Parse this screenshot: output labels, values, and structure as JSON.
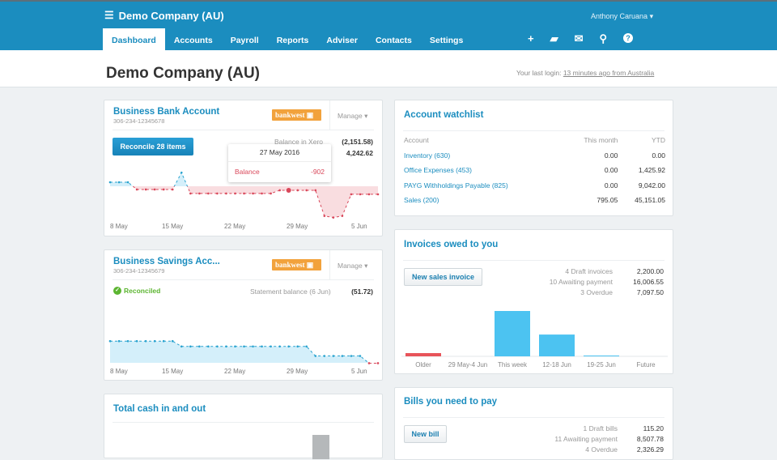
{
  "header": {
    "org_name": "Demo Company (AU)",
    "user": "Anthony Caruana",
    "nav": [
      "Dashboard",
      "Accounts",
      "Payroll",
      "Reports",
      "Adviser",
      "Contacts",
      "Settings"
    ],
    "active_tab": "Dashboard",
    "icons": [
      "plus-icon",
      "folder-icon",
      "mail-icon",
      "search-icon",
      "help-icon"
    ]
  },
  "page": {
    "title": "Demo Company (AU)",
    "login_prefix": "Your last login:",
    "login_link": "13 minutes ago from Australia"
  },
  "bank": {
    "title": "Business Bank Account",
    "number": "306-234-12345678",
    "bank_logo": "bankwest",
    "manage": "Manage",
    "reconcile": "Reconcile 28 items",
    "balance_label": "Balance in Xero",
    "balance_value": "(2,151.58)",
    "statement_value": "4,242.62",
    "tooltip": {
      "date": "27 May 2016",
      "label": "Balance",
      "value": "-902"
    },
    "x_labels": [
      "8 May",
      "15 May",
      "22 May",
      "29 May",
      "5 Jun"
    ],
    "series": [
      900,
      900,
      900,
      -720,
      -720,
      -720,
      -720,
      -720,
      3060,
      -1620,
      -1620,
      -1620,
      -1620,
      -1620,
      -1620,
      -1620,
      -1620,
      -1620,
      -1620,
      -900,
      -902,
      -900,
      -900,
      -900,
      -6660,
      -7020,
      -6660,
      -1800,
      -1800,
      -1800,
      -1800
    ],
    "highlight_index": 20
  },
  "savings": {
    "title": "Business Savings Acc...",
    "number": "306-234-12345679",
    "bank_logo": "bankwest",
    "manage": "Manage",
    "status": "Reconciled",
    "statement_label": "Statement balance (6 Jun)",
    "statement_value": "(51.72)",
    "x_labels": [
      "8 May",
      "15 May",
      "22 May",
      "29 May",
      "5 Jun"
    ],
    "series": [
      57,
      57,
      57,
      57,
      57,
      57,
      57,
      57,
      43,
      43,
      43,
      43,
      43,
      43,
      43,
      43,
      43,
      43,
      43,
      43,
      43,
      43,
      43,
      18,
      18,
      18,
      18,
      18,
      18,
      -1,
      -1
    ]
  },
  "cash": {
    "title": "Total cash in and out"
  },
  "watchlist": {
    "title": "Account watchlist",
    "columns": [
      "Account",
      "This month",
      "YTD"
    ],
    "rows": [
      [
        "Inventory (630)",
        "0.00",
        "0.00"
      ],
      [
        "Office Expenses (453)",
        "0.00",
        "1,425.92"
      ],
      [
        "PAYG Withholdings Payable (825)",
        "0.00",
        "9,042.00"
      ],
      [
        "Sales (200)",
        "795.05",
        "45,151.05"
      ]
    ]
  },
  "invoices": {
    "title": "Invoices owed to you",
    "button": "New sales invoice",
    "summary": [
      [
        "4 Draft invoices",
        "2,200.00"
      ],
      [
        "10 Awaiting payment",
        "16,006.55"
      ],
      [
        "3 Overdue",
        "7,097.50"
      ]
    ],
    "chart_data": {
      "type": "bar",
      "categories": [
        "Older",
        "29 May-4 Jun",
        "This week",
        "12-18 Jun",
        "19-25 Jun",
        "Future"
      ],
      "values": [
        730,
        0,
        10200,
        4900,
        180,
        0
      ],
      "colors": [
        "#e8545a",
        "#4cc3f1",
        "#4cc3f1",
        "#4cc3f1",
        "#4cc3f1",
        "#4cc3f1"
      ]
    }
  },
  "bills": {
    "title": "Bills you need to pay",
    "button": "New bill",
    "summary": [
      [
        "1 Draft bills",
        "115.20"
      ],
      [
        "11 Awaiting payment",
        "8,507.78"
      ],
      [
        "4 Overdue",
        "2,326.29"
      ]
    ]
  },
  "colors": {
    "brand": "#1b8dbf",
    "negative": "#d9475a",
    "positive": "#2aa3cf",
    "reconciled": "#5cb531",
    "bankwest": "#f2a23c"
  }
}
